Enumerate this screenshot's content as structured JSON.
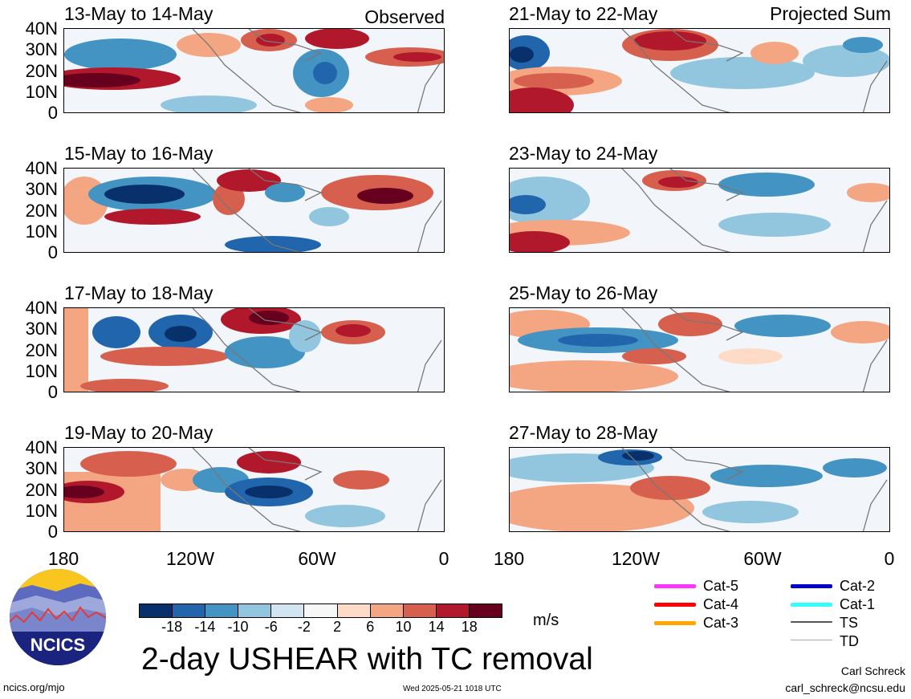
{
  "header": {
    "left_label": "Observed",
    "right_label": "Projected Sum"
  },
  "panels_left": [
    {
      "title": "13-May to 14-May"
    },
    {
      "title": "15-May to 16-May"
    },
    {
      "title": "17-May to 18-May"
    },
    {
      "title": "19-May to 20-May"
    }
  ],
  "panels_right": [
    {
      "title": "21-May to 22-May"
    },
    {
      "title": "23-May to 24-May"
    },
    {
      "title": "25-May to 26-May"
    },
    {
      "title": "27-May to 28-May"
    }
  ],
  "y_ticks": [
    "40N",
    "30N",
    "20N",
    "10N",
    "0"
  ],
  "x_ticks": [
    "180",
    "120W",
    "60W",
    "0"
  ],
  "colorbar": {
    "labels": [
      "-18",
      "-14",
      "-10",
      "-6",
      "-2",
      "2",
      "6",
      "10",
      "14",
      "18"
    ],
    "colors": [
      "#08306b",
      "#2166ac",
      "#4393c3",
      "#92c5de",
      "#d1e5f0",
      "#f7f7f7",
      "#fddbc7",
      "#f4a582",
      "#d6604d",
      "#b2182b",
      "#67001f"
    ],
    "units": "m/s"
  },
  "title": "2-day USHEAR with TC removal",
  "legend": [
    {
      "label": "Cat-5",
      "color": "#ff33ff"
    },
    {
      "label": "Cat-4",
      "color": "#ff0000"
    },
    {
      "label": "Cat-3",
      "color": "#ffa500"
    },
    {
      "label": "Cat-2",
      "color": "#0000cc"
    },
    {
      "label": "Cat-1",
      "color": "#33ffff"
    },
    {
      "label": "TS",
      "color": "#555555"
    },
    {
      "label": "TD",
      "color": "#aaaaaa"
    }
  ],
  "footer": {
    "url": "ncics.org/mjo",
    "timestamp": "Wed 2025-05-21 1018 UTC",
    "author": "Carl Schreck",
    "email": "carl_schreck@ncsu.edu"
  },
  "logo": {
    "text": "NCICS"
  }
}
